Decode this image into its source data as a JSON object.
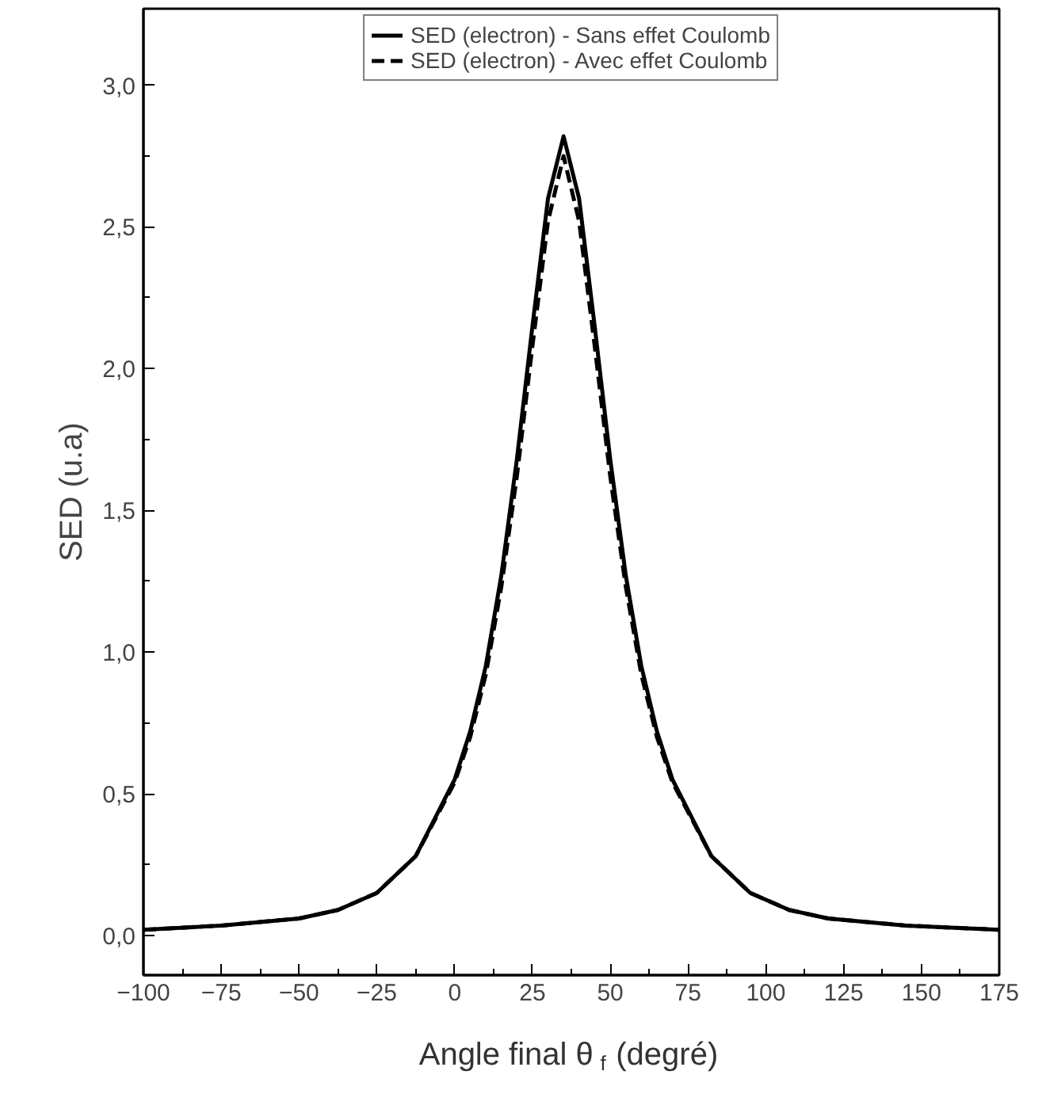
{
  "chart_data": {
    "type": "line",
    "xlabel": "Angle final θ$_{f}$ (degré)",
    "ylabel": "SED (u.a)",
    "xlim": [
      -100,
      175
    ],
    "ylim": [
      -0.14,
      3.27
    ],
    "xticks": [
      -100,
      -75,
      -50,
      -25,
      0,
      25,
      50,
      75,
      100,
      125,
      150,
      175
    ],
    "yticks": [
      {
        "value": 0,
        "label": "0,0"
      },
      {
        "value": 0.5,
        "label": "0,5"
      },
      {
        "value": 1,
        "label": "1,0"
      },
      {
        "value": 1.5,
        "label": "1,5"
      },
      {
        "value": 2,
        "label": "2,0"
      },
      {
        "value": 2.5,
        "label": "2,5"
      },
      {
        "value": 3,
        "label": "3,0"
      }
    ],
    "grid": false,
    "legend": "top",
    "marker": "none",
    "series": [
      {
        "name": "SED (electron) - Sans effet Coulomb",
        "color": "#000000",
        "line_style": "solid",
        "x": [
          -100,
          -75,
          -50,
          -37.5,
          -25,
          -12.5,
          0,
          5,
          10,
          15,
          20,
          25,
          30,
          35,
          40,
          45,
          50,
          55,
          60,
          65,
          70,
          82.5,
          95,
          107.5,
          120,
          145,
          175
        ],
        "values": [
          0.02,
          0.035,
          0.06,
          0.09,
          0.15,
          0.28,
          0.55,
          0.72,
          0.95,
          1.27,
          1.68,
          2.15,
          2.6,
          2.82,
          2.6,
          2.15,
          1.68,
          1.27,
          0.95,
          0.72,
          0.55,
          0.28,
          0.15,
          0.09,
          0.06,
          0.035,
          0.02
        ]
      },
      {
        "name": "SED (electron) - Avec effet Coulomb",
        "color": "#000000",
        "line_style": "dashed",
        "x": [
          -100,
          -75,
          -50,
          -37.5,
          -25,
          -12.5,
          0,
          5,
          10,
          15,
          20,
          25,
          30,
          35,
          40,
          45,
          50,
          55,
          60,
          65,
          70,
          82.5,
          95,
          107.5,
          120,
          145,
          175
        ],
        "values": [
          0.02,
          0.035,
          0.06,
          0.09,
          0.15,
          0.28,
          0.54,
          0.7,
          0.92,
          1.23,
          1.62,
          2.08,
          2.52,
          2.75,
          2.52,
          2.08,
          1.62,
          1.23,
          0.92,
          0.7,
          0.54,
          0.28,
          0.15,
          0.09,
          0.06,
          0.035,
          0.02
        ]
      }
    ]
  }
}
